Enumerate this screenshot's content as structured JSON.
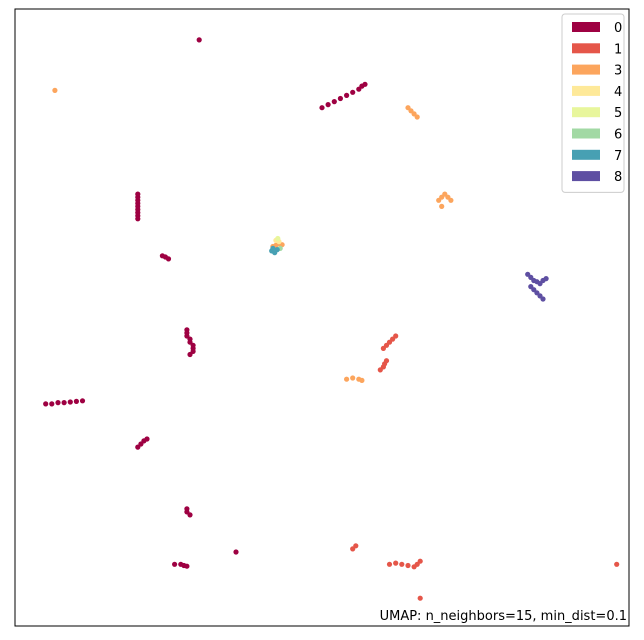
{
  "chart_data": {
    "type": "scatter",
    "annotation": "UMAP: n_neighbors=15, min_dist=0.1",
    "grid": false,
    "axes_visible": false,
    "legend": {
      "placement": "top-right",
      "entries": [
        {
          "label": "0",
          "color": "#9e0142"
        },
        {
          "label": "1",
          "color": "#e55649"
        },
        {
          "label": "3",
          "color": "#fca55d"
        },
        {
          "label": "4",
          "color": "#fee999"
        },
        {
          "label": "5",
          "color": "#e8f69c"
        },
        {
          "label": "6",
          "color": "#a2d9a4"
        },
        {
          "label": "7",
          "color": "#47a0b3"
        },
        {
          "label": "8",
          "color": "#5e4fa2"
        }
      ]
    },
    "series": [
      {
        "name": "0",
        "color": "#9e0142",
        "points": [
          [
            0.3,
            0.95
          ],
          [
            0.5,
            0.84
          ],
          [
            0.51,
            0.845
          ],
          [
            0.52,
            0.85
          ],
          [
            0.53,
            0.855
          ],
          [
            0.54,
            0.86
          ],
          [
            0.55,
            0.865
          ],
          [
            0.56,
            0.87
          ],
          [
            0.565,
            0.875
          ],
          [
            0.57,
            0.878
          ],
          [
            0.2,
            0.66
          ],
          [
            0.2,
            0.665
          ],
          [
            0.2,
            0.67
          ],
          [
            0.2,
            0.675
          ],
          [
            0.2,
            0.68
          ],
          [
            0.2,
            0.685
          ],
          [
            0.2,
            0.69
          ],
          [
            0.2,
            0.695
          ],
          [
            0.2,
            0.7
          ],
          [
            0.24,
            0.6
          ],
          [
            0.245,
            0.598
          ],
          [
            0.25,
            0.595
          ],
          [
            0.28,
            0.48
          ],
          [
            0.28,
            0.475
          ],
          [
            0.28,
            0.47
          ],
          [
            0.285,
            0.465
          ],
          [
            0.285,
            0.46
          ],
          [
            0.29,
            0.455
          ],
          [
            0.29,
            0.45
          ],
          [
            0.29,
            0.445
          ],
          [
            0.285,
            0.44
          ],
          [
            0.05,
            0.36
          ],
          [
            0.06,
            0.36
          ],
          [
            0.07,
            0.362
          ],
          [
            0.08,
            0.362
          ],
          [
            0.09,
            0.363
          ],
          [
            0.1,
            0.364
          ],
          [
            0.11,
            0.365
          ],
          [
            0.2,
            0.29
          ],
          [
            0.205,
            0.295
          ],
          [
            0.21,
            0.3
          ],
          [
            0.215,
            0.303
          ],
          [
            0.28,
            0.19
          ],
          [
            0.28,
            0.185
          ],
          [
            0.285,
            0.18
          ],
          [
            0.36,
            0.12
          ],
          [
            0.26,
            0.1
          ],
          [
            0.27,
            0.1
          ],
          [
            0.275,
            0.098
          ],
          [
            0.28,
            0.097
          ]
        ]
      },
      {
        "name": "1",
        "color": "#e55649",
        "points": [
          [
            0.6,
            0.45
          ],
          [
            0.605,
            0.455
          ],
          [
            0.61,
            0.46
          ],
          [
            0.615,
            0.465
          ],
          [
            0.62,
            0.47
          ],
          [
            0.6,
            0.42
          ],
          [
            0.602,
            0.425
          ],
          [
            0.605,
            0.43
          ],
          [
            0.595,
            0.415
          ],
          [
            0.55,
            0.125
          ],
          [
            0.555,
            0.13
          ],
          [
            0.61,
            0.1
          ],
          [
            0.62,
            0.102
          ],
          [
            0.63,
            0.1
          ],
          [
            0.64,
            0.098
          ],
          [
            0.65,
            0.096
          ],
          [
            0.655,
            0.1
          ],
          [
            0.66,
            0.105
          ],
          [
            0.98,
            0.1
          ],
          [
            0.66,
            0.045
          ]
        ]
      },
      {
        "name": "3",
        "color": "#fca55d",
        "points": [
          [
            0.065,
            0.868
          ],
          [
            0.64,
            0.84
          ],
          [
            0.645,
            0.835
          ],
          [
            0.65,
            0.83
          ],
          [
            0.655,
            0.825
          ],
          [
            0.69,
            0.69
          ],
          [
            0.695,
            0.695
          ],
          [
            0.7,
            0.7
          ],
          [
            0.705,
            0.695
          ],
          [
            0.71,
            0.69
          ],
          [
            0.695,
            0.68
          ],
          [
            0.42,
            0.615
          ],
          [
            0.425,
            0.617
          ],
          [
            0.43,
            0.62
          ],
          [
            0.435,
            0.618
          ],
          [
            0.54,
            0.4
          ],
          [
            0.55,
            0.402
          ],
          [
            0.56,
            0.4
          ],
          [
            0.565,
            0.398
          ]
        ]
      },
      {
        "name": "4",
        "color": "#fee999",
        "points": [
          [
            0.425,
            0.625
          ],
          [
            0.43,
            0.623
          ]
        ]
      },
      {
        "name": "5",
        "color": "#e8f69c",
        "points": [
          [
            0.428,
            0.628
          ]
        ]
      },
      {
        "name": "6",
        "color": "#a2d9a4",
        "points": [
          [
            0.432,
            0.612
          ]
        ]
      },
      {
        "name": "7",
        "color": "#47a0b3",
        "points": [
          [
            0.418,
            0.608
          ],
          [
            0.42,
            0.612
          ],
          [
            0.423,
            0.605
          ],
          [
            0.427,
            0.61
          ]
        ]
      },
      {
        "name": "8",
        "color": "#5e4fa2",
        "points": [
          [
            0.835,
            0.57
          ],
          [
            0.84,
            0.565
          ],
          [
            0.845,
            0.56
          ],
          [
            0.85,
            0.558
          ],
          [
            0.855,
            0.555
          ],
          [
            0.86,
            0.56
          ],
          [
            0.865,
            0.563
          ],
          [
            0.84,
            0.55
          ],
          [
            0.845,
            0.545
          ],
          [
            0.85,
            0.54
          ],
          [
            0.855,
            0.535
          ],
          [
            0.86,
            0.53
          ]
        ]
      }
    ]
  }
}
